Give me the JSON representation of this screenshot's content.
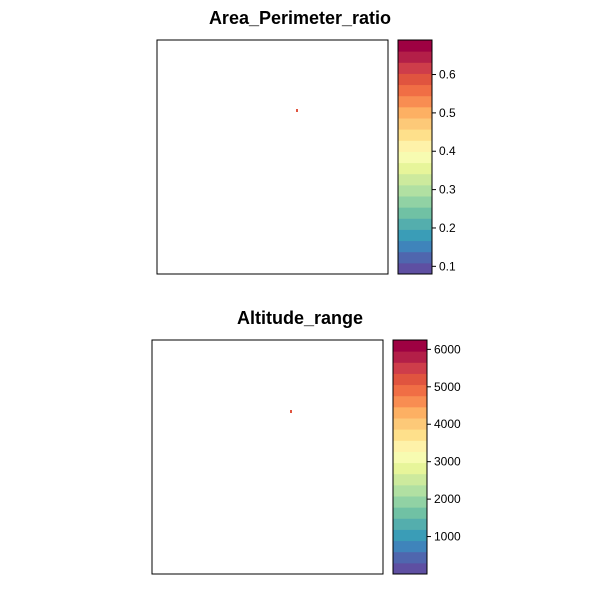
{
  "palette": [
    "#5E4FA2",
    "#4F66AE",
    "#3F84BB",
    "#3A9DB7",
    "#54AEAD",
    "#70C1A4",
    "#91D2A4",
    "#B1E0A2",
    "#CDEA9D",
    "#E7F59A",
    "#F7FBB1",
    "#FEF2A9",
    "#FEE08B",
    "#FDC978",
    "#FDB063",
    "#F88D52",
    "#F06E45",
    "#E0543F",
    "#CE3D4A",
    "#B31F48",
    "#9E0142"
  ],
  "panels": [
    {
      "title": "Area_Perimeter_ratio",
      "scale": {
        "min": 0.08,
        "max": 0.69
      },
      "ticks": [
        {
          "value": 0.1,
          "label": "0.1"
        },
        {
          "value": 0.2,
          "label": "0.2"
        },
        {
          "value": 0.3,
          "label": "0.3"
        },
        {
          "value": 0.4,
          "label": "0.4"
        },
        {
          "value": 0.5,
          "label": "0.5"
        },
        {
          "value": 0.6,
          "label": "0.6"
        }
      ]
    },
    {
      "title": "Altitude_range",
      "scale": {
        "min": 0,
        "max": 6250
      },
      "ticks": [
        {
          "value": 1000,
          "label": "1000"
        },
        {
          "value": 2000,
          "label": "2000"
        },
        {
          "value": 3000,
          "label": "3000"
        },
        {
          "value": 4000,
          "label": "4000"
        },
        {
          "value": 5000,
          "label": "5000"
        },
        {
          "value": 6000,
          "label": "6000"
        }
      ]
    }
  ]
}
